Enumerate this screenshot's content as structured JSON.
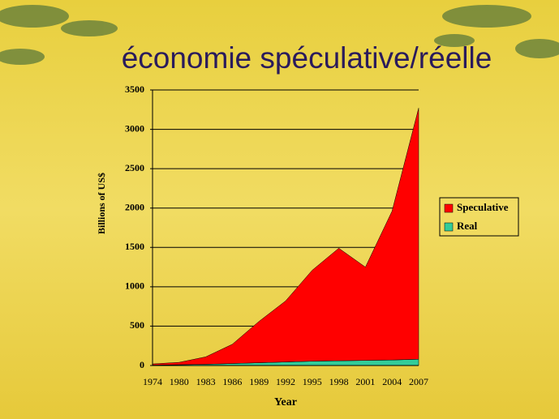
{
  "chart_data": {
    "type": "stacked-area",
    "title": "économie spéculative/réelle",
    "x_label": "Year",
    "y_label": "Billions of US$",
    "categories": [
      "1974",
      "1980",
      "1983",
      "1986",
      "1989",
      "1992",
      "1995",
      "1998",
      "2001",
      "2004",
      "2007"
    ],
    "series": [
      {
        "name": "Real",
        "color": "#33cc99",
        "values": [
          5,
          10,
          15,
          25,
          35,
          45,
          55,
          60,
          65,
          70,
          80
        ]
      },
      {
        "name": "Speculative",
        "color": "#ff0000",
        "values": [
          15,
          30,
          95,
          245,
          525,
          775,
          1155,
          1430,
          1185,
          1890,
          3190
        ]
      }
    ],
    "legend_order": [
      1,
      0
    ],
    "ylim": [
      0,
      3500
    ],
    "yticks": [
      0,
      500,
      1000,
      1500,
      2000,
      2500,
      3000,
      3500
    ],
    "grid": true,
    "legend": "right"
  }
}
